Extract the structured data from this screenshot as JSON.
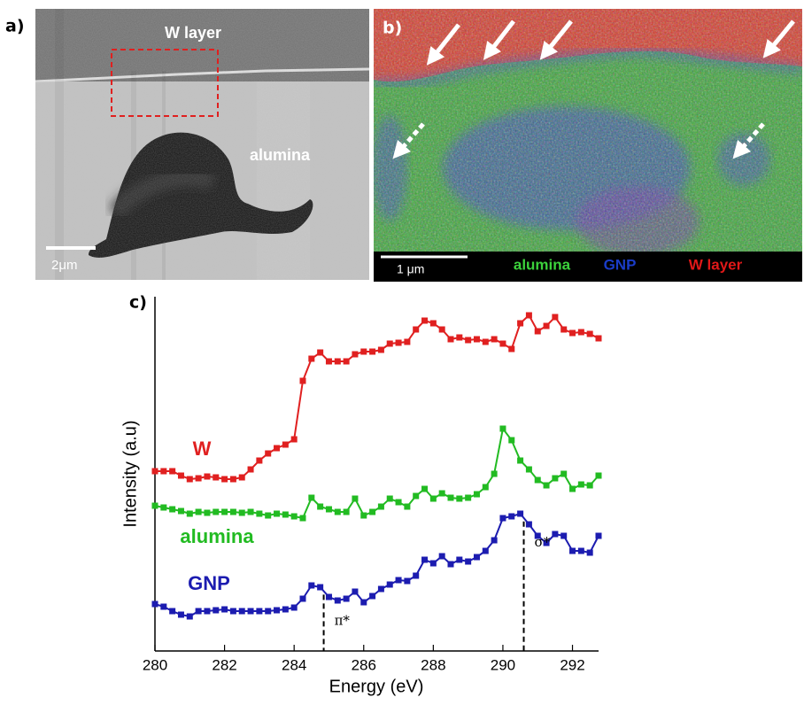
{
  "panel_a": {
    "label": "a)",
    "layer_label": "W layer",
    "region_label": "alumina",
    "scale_bar": "2μm"
  },
  "panel_b": {
    "label": "b)",
    "scale_bar": "1 μm",
    "legend": [
      {
        "text": "alumina",
        "color": "#3cd23c"
      },
      {
        "text": "GNP",
        "color": "#1a3cc8"
      },
      {
        "text": "W layer",
        "color": "#e01818"
      }
    ]
  },
  "chart_data": {
    "type": "line",
    "panel_label": "c)",
    "xlabel": "Energy (eV)",
    "ylabel": "Intensity (a.u)",
    "xlim": [
      280,
      292.75
    ],
    "ylim": [
      0,
      100
    ],
    "xticks": [
      280,
      282,
      284,
      286,
      288,
      290,
      292
    ],
    "marker": "square",
    "x": [
      280,
      280.25,
      280.5,
      280.75,
      281,
      281.25,
      281.5,
      281.75,
      282,
      282.25,
      282.5,
      282.75,
      283,
      283.25,
      283.5,
      283.75,
      284,
      284.25,
      284.5,
      284.75,
      285,
      285.25,
      285.5,
      285.75,
      286,
      286.25,
      286.5,
      286.75,
      287,
      287.25,
      287.5,
      287.75,
      288,
      288.25,
      288.5,
      288.75,
      289,
      289.25,
      289.5,
      289.75,
      290,
      290.25,
      290.5,
      290.75,
      291,
      291.25,
      291.5,
      291.75,
      292,
      292.25,
      292.5,
      292.75
    ],
    "series": [
      {
        "name": "W",
        "color": "#e02020",
        "values": [
          50.75,
          50.75,
          50.75,
          49.5,
          48.5,
          48.75,
          49.25,
          49,
          48.5,
          48.5,
          49,
          51.25,
          53.75,
          55.75,
          57.25,
          58.25,
          59.75,
          76.25,
          82.5,
          84.25,
          81.75,
          81.75,
          81.75,
          83.75,
          84.5,
          84.5,
          85,
          86.75,
          87,
          87.25,
          90.75,
          93.25,
          92.5,
          90.75,
          88,
          88.5,
          87.75,
          88,
          87.25,
          88,
          86.75,
          85.25,
          92.5,
          94.75,
          90.25,
          91.75,
          94.25,
          90.75,
          89.75,
          90,
          89.5,
          88.25
        ]
      },
      {
        "name": "alumina",
        "color": "#22bb22",
        "values": [
          41,
          40.5,
          40,
          39.5,
          38.75,
          39.25,
          39,
          39.25,
          39.25,
          39.25,
          39,
          39.25,
          38.75,
          38.25,
          38.75,
          38.5,
          38,
          37.5,
          43.25,
          40.75,
          40,
          39.25,
          39.25,
          43,
          38.25,
          39.25,
          40.75,
          43,
          42,
          40.75,
          43.75,
          45.75,
          43,
          44.5,
          43.25,
          43,
          43.25,
          44.25,
          46.25,
          50,
          62.75,
          59.5,
          53.75,
          51.25,
          48.25,
          46.75,
          48.75,
          50,
          45.75,
          47,
          46.75,
          49.5
        ]
      },
      {
        "name": "GNP",
        "color": "#1c1cb0",
        "values": [
          13.25,
          12.5,
          11.25,
          10.25,
          9.75,
          11.25,
          11.25,
          11.5,
          11.75,
          11.25,
          11.25,
          11.25,
          11.25,
          11.25,
          11.5,
          11.75,
          12.25,
          14.75,
          18.5,
          18,
          15.25,
          14.25,
          14.75,
          16.75,
          13.75,
          15.5,
          17.5,
          18.75,
          20,
          19.75,
          21.25,
          25.75,
          24.75,
          26.75,
          24.5,
          25.75,
          25.25,
          26.5,
          28.25,
          31.25,
          37.5,
          38,
          38.75,
          35.75,
          32.5,
          30.5,
          33,
          32.5,
          28.25,
          28.25,
          27.75,
          32.5
        ]
      }
    ],
    "annotations": [
      {
        "text": "π*",
        "x": 284.85
      },
      {
        "text": "σ*",
        "x": 290.6
      }
    ]
  }
}
